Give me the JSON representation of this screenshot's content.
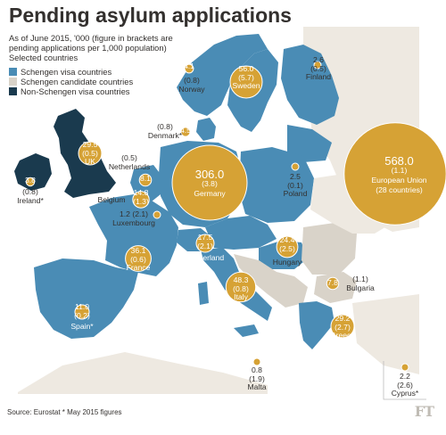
{
  "title": "Pending asylum applications",
  "subtitle_lines": [
    "As of June 2015, '000 (figure in brackets are",
    "pending applications per 1,000 population)",
    "Selected countries"
  ],
  "legend": [
    {
      "label": "Schengen visa countries",
      "color": "#4a8cb5"
    },
    {
      "label": "Schengen candidate countries",
      "color": "#d9d3c9"
    },
    {
      "label": "Non-Schengen visa countries",
      "color": "#1a3a4e"
    }
  ],
  "colors": {
    "bubble": "#d6a235",
    "sea": "#ffffff",
    "land_other": "#eee9e1",
    "schengen": "#4a8cb5",
    "candidate": "#d9d3c9",
    "non_schengen": "#1a3a4e"
  },
  "countries": [
    {
      "key": "norway",
      "name": "Norway",
      "value": "4.1",
      "per1000": "(0.8)"
    },
    {
      "key": "sweden",
      "name": "Sweden",
      "value": "56.0",
      "per1000": "(5.7)"
    },
    {
      "key": "finland",
      "name": "Finland",
      "value": "2.6",
      "per1000": "(0.5)"
    },
    {
      "key": "denmark",
      "name": "Denmark*",
      "value": "4.5",
      "per1000": "(0.8)"
    },
    {
      "key": "uk",
      "name": "UK",
      "value": "29.5",
      "per1000": "(0.5)"
    },
    {
      "key": "ireland",
      "name": "Ireland*",
      "value": "3.8",
      "per1000": "(0.8)"
    },
    {
      "key": "netherlands",
      "name": "Netherlands",
      "value": "8.1",
      "per1000": "(0.5)"
    },
    {
      "key": "belgium",
      "name": "Belgium",
      "value": "14.8",
      "per1000": "(1.3)"
    },
    {
      "key": "luxembourg",
      "name": "Luxembourg",
      "value": "1.2",
      "per1000": "(2.1)"
    },
    {
      "key": "germany",
      "name": "Germany",
      "value": "306.0",
      "per1000": "(3.8)"
    },
    {
      "key": "poland",
      "name": "Poland",
      "value": "2.5",
      "per1000": "(0.1)"
    },
    {
      "key": "eu",
      "name": "European Union",
      "name2": "(28 countries)",
      "value": "568.0",
      "per1000": "(1.1)"
    },
    {
      "key": "france",
      "name": "France",
      "value": "36.1",
      "per1000": "(0.6)"
    },
    {
      "key": "switzerland",
      "name": "Switzerland",
      "value": "17.5",
      "per1000": "(2.1)"
    },
    {
      "key": "hungary",
      "name": "Hungary",
      "value": "24.4",
      "per1000": "(2.5)"
    },
    {
      "key": "bulgaria",
      "name": "Bulgaria",
      "value": "7.8",
      "per1000": "(1.1)"
    },
    {
      "key": "italy",
      "name": "Italy",
      "value": "48.3",
      "per1000": "(0.8)"
    },
    {
      "key": "spain",
      "name": "Spain*",
      "value": "11.0",
      "per1000": "(0.2)"
    },
    {
      "key": "greece",
      "name": "Greece",
      "value": "29.2",
      "per1000": "(2.7)"
    },
    {
      "key": "malta",
      "name": "Malta",
      "value": "0.8",
      "per1000": "(1.9)"
    },
    {
      "key": "cyprus",
      "name": "Cyprus*",
      "value": "2.2",
      "per1000": "(2.6)"
    }
  ],
  "source": "Source: Eurostat   * May 2015 figures",
  "logo": "FT"
}
